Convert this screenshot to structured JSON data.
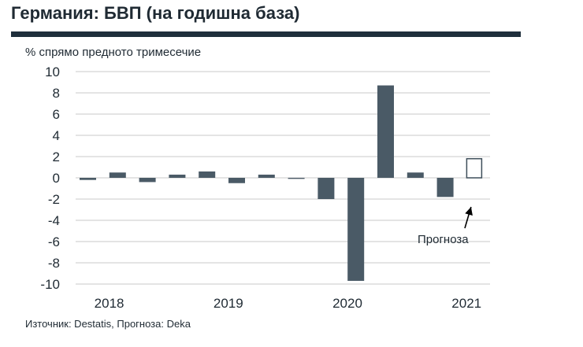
{
  "title": "Германия: БВП (на годишна база)",
  "source": "Източник: Destatis, Прогноза: Deka",
  "colors": {
    "bar": "#4a5a66",
    "forecast_stroke": "#3e4e5a",
    "grid": "#c8c8c8",
    "rule": "#1f2f3c"
  },
  "chart_data": {
    "type": "bar",
    "ylabel": "% спрямо предното тримесечие",
    "xlabel": "",
    "ylim": [
      -10,
      10
    ],
    "yticks": [
      10,
      8,
      6,
      4,
      2,
      0,
      -2,
      -4,
      -6,
      -8,
      -10
    ],
    "grid": true,
    "categories": [
      "2018 Q1",
      "2018 Q2",
      "2018 Q3",
      "2018 Q4",
      "2019 Q1",
      "2019 Q2",
      "2019 Q3",
      "2019 Q4",
      "2020 Q1",
      "2020 Q2",
      "2020 Q3",
      "2020 Q4",
      "2021 Q1",
      "2021 Q2"
    ],
    "values": [
      -0.2,
      0.5,
      -0.4,
      0.3,
      0.6,
      -0.5,
      0.3,
      -0.1,
      -2.0,
      -9.7,
      8.7,
      0.5,
      -1.8,
      1.8
    ],
    "forecast": [
      false,
      false,
      false,
      false,
      false,
      false,
      false,
      false,
      false,
      false,
      false,
      false,
      false,
      true
    ],
    "year_labels": [
      {
        "label": "2018",
        "start_index": 0
      },
      {
        "label": "2019",
        "start_index": 4
      },
      {
        "label": "2020",
        "start_index": 8
      },
      {
        "label": "2021",
        "start_index": 12
      }
    ],
    "annotation": {
      "text": "Прогноза",
      "target_index": 13
    }
  }
}
